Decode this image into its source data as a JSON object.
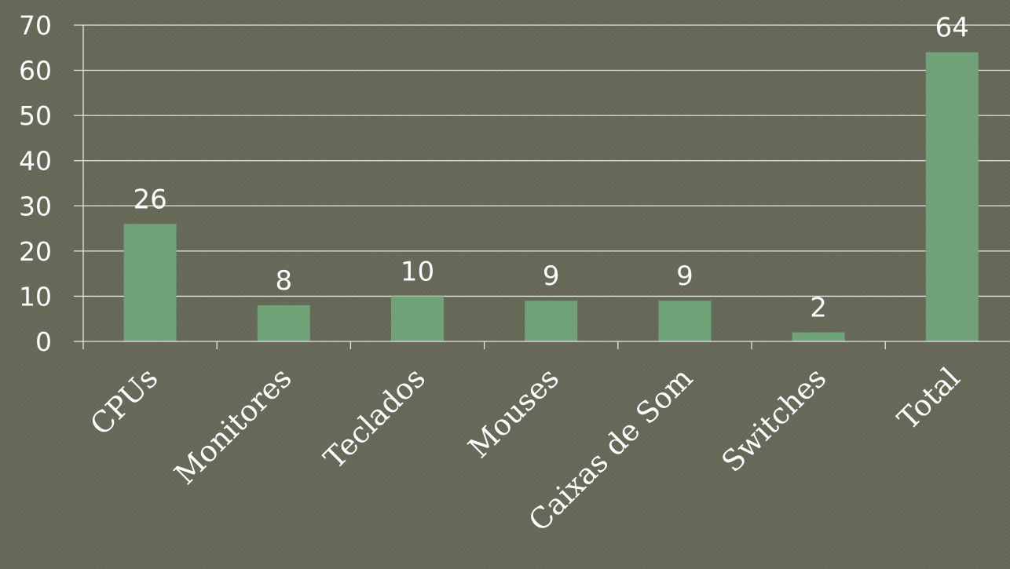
{
  "chart_data": {
    "type": "bar",
    "title": "",
    "xlabel": "",
    "ylabel": "",
    "categories": [
      "CPUs",
      "Monitores",
      "Teclados",
      "Mouses",
      "Caixas de Som",
      "Switches",
      "Total"
    ],
    "values": [
      26,
      8,
      10,
      9,
      9,
      2,
      64
    ],
    "data_labels": [
      "26",
      "8",
      "10",
      "9",
      "9",
      "2",
      "64"
    ],
    "ylim": [
      0,
      70
    ],
    "yticks": [
      "0",
      "10",
      "20",
      "30",
      "40",
      "50",
      "60",
      "70"
    ],
    "grid": true,
    "legend": "none",
    "colors": {
      "background": "#666858",
      "bar": "#6fa277",
      "gridline": "#e8e8e0",
      "text": "#ffffff"
    }
  }
}
